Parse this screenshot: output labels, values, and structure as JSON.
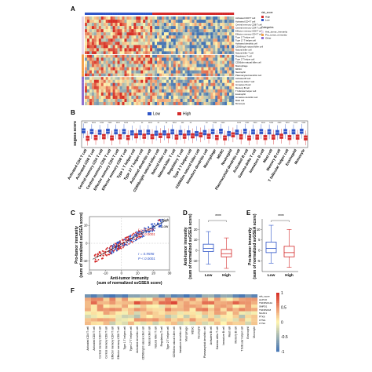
{
  "panels": {
    "A": "A",
    "B": "B",
    "C": "C",
    "D": "D",
    "E": "E",
    "F": "F"
  },
  "colors": {
    "low": "#2f55c8",
    "high": "#d42a2a",
    "anti_tumor": "#ead9ec",
    "pro_tumor": "#f3a24e",
    "other": "#8f6fd0",
    "heat_hi": "#d73027",
    "heat_mid": "#fff5b0",
    "heat_lo": "#4575b4"
  },
  "legend_A": {
    "risk_title": "risk_score",
    "risk_items": [
      "High",
      "Low"
    ],
    "cat_title": "Categories",
    "cat_items": [
      "Anti_tumor_immunity",
      "Pro_tumor_immunity",
      "Other"
    ]
  },
  "cells_A": [
    "Activated CD8 T cell",
    "Activated CD4 T cell",
    "Central memory CD8 T cell",
    "Central memory CD4 T cell",
    "Effector memory CD8 T cell",
    "Effector memory CD4 T cell",
    "Type 1 T helper cell",
    "Type 17 T helper cell",
    "Activated dendritic cell",
    "CD56bright natural killer cell",
    "Natural killer cell",
    "Natural killer T cell",
    "Regulatory T cell",
    "Type 2 T helper cell",
    "CD56dim natural killer cell",
    "Macrophage",
    "MDSC",
    "Neutrophil",
    "Plasmacytoid dendritic cell",
    "Activated B cell",
    "Gamma delta T cell",
    "Immature B cell",
    "Memory B cell",
    "T follicular helper cell",
    "Eosinophil",
    "Immature dendritic cell",
    "Mast cell",
    "Monocyte"
  ],
  "chart_data": [
    {
      "panel": "B",
      "type": "box",
      "ylabel": "ssgsea score",
      "legend": [
        "Low",
        "High"
      ],
      "categories": [
        "Activated CD4 T cell",
        "Activated CD8 T cell",
        "Central memory CD4 T cell",
        "Central memory CD8 T cell",
        "Effector memory CD4 T cell",
        "Effector memory CD8 T cell",
        "Type 1 T helper cell",
        "Type 17 T helper cell",
        "Activated dendritic cell",
        "CD56bright natural killer cell",
        "Natural killer cell",
        "Natural killer T cell",
        "Regulatory T cell",
        "Type 2 T helper cell",
        "CD56dim natural killer cell",
        "Immature dendritic cell",
        "Macrophage",
        "MDSC",
        "Neutrophil",
        "Plasmacytoid dendritic cell",
        "Activated B cell",
        "Gamma delta T cell",
        "Immature B cell",
        "Mast cell",
        "Memory B cell",
        "T follicular helper cell",
        "Eosinophil",
        "Monocyte"
      ],
      "significance": [
        "****",
        "****",
        "****",
        "****",
        "****",
        "****",
        "*",
        "**",
        "****",
        "**",
        "**",
        "****",
        "***",
        "**",
        "",
        "**",
        "****",
        "****",
        "",
        "****",
        "****",
        "****",
        "****",
        "****",
        "****",
        "****",
        "****",
        "****"
      ],
      "low_median": [
        0.25,
        0.2,
        0.15,
        0.22,
        0.18,
        0.2,
        0.1,
        0.12,
        0.15,
        0.08,
        0.1,
        0.18,
        0.12,
        0.1,
        0.05,
        0.12,
        0.2,
        0.22,
        0.05,
        0.15,
        0.22,
        0.18,
        0.2,
        0.18,
        0.12,
        0.2,
        0.18,
        0.22
      ],
      "high_median": [
        -0.3,
        -0.25,
        -0.18,
        -0.28,
        -0.2,
        -0.25,
        -0.12,
        -0.15,
        -0.18,
        -0.1,
        -0.12,
        -0.22,
        -0.15,
        -0.12,
        -0.05,
        -0.15,
        -0.25,
        -0.28,
        -0.05,
        -0.2,
        -0.28,
        -0.22,
        -0.25,
        -0.22,
        -0.15,
        -0.25,
        -0.22,
        -0.28
      ],
      "ylim": [
        -1,
        1
      ]
    },
    {
      "panel": "C",
      "type": "scatter",
      "xlabel": "Anti-tumor immunity",
      "xlabel2": "(sum of normalized ssGSEA score)",
      "ylabel": "Pro-tumor immunity",
      "ylabel2": "(sum of normalized ssGSEA score)",
      "xlim": [
        -20,
        30
      ],
      "ylim": [
        -15,
        15
      ],
      "xticks": [
        "-20",
        "-10",
        "0",
        "10",
        "20",
        "30"
      ],
      "yticks": [
        "-10",
        "0",
        "10"
      ],
      "legend": [
        "High",
        "Low"
      ],
      "stats_top_r": "r = 0.9254",
      "stats_top_p": "P < 0.0001",
      "stats_bot_r": "r = 0.9596",
      "stats_bot_p": "P < 0.0001"
    },
    {
      "panel": "D",
      "type": "box",
      "ylabel": "Anti-tumor immunity",
      "ylabel2": "(sum of normalized ssGSEA score)",
      "categories": [
        "Low",
        "High"
      ],
      "significance": "****",
      "yticks": [
        "-10",
        "0",
        "10",
        "20"
      ],
      "ylim": [
        -20,
        30
      ],
      "low": {
        "min": -13,
        "q1": -1,
        "median": 2,
        "q3": 6,
        "max": 18
      },
      "high": {
        "min": -17,
        "q1": -6,
        "median": -3,
        "q3": 1,
        "max": 12
      }
    },
    {
      "panel": "E",
      "type": "box",
      "ylabel": "Pro-tumor immunity",
      "ylabel2": "(sum of normalized ssGSEA score)",
      "categories": [
        "Low",
        "High"
      ],
      "significance": "****",
      "yticks": [
        "-5",
        "0",
        "5",
        "10"
      ],
      "ylim": [
        -10,
        15
      ],
      "low": {
        "min": -6,
        "q1": -1,
        "median": 1,
        "q3": 4,
        "max": 12
      },
      "high": {
        "min": -8,
        "q1": -3,
        "median": -1,
        "q3": 2,
        "max": 10
      }
    },
    {
      "panel": "F",
      "type": "heatmap",
      "colorbar_ticks": [
        "1",
        "0.5",
        "0",
        "-0.5",
        "-1"
      ],
      "row_labels": [
        "risk_score",
        "ALPCO",
        "TNFRSF12A",
        "SMPD1",
        "TNFRSF18",
        "NUAK1",
        "PTK6",
        "CTSG",
        "CYSA"
      ],
      "col_labels": [
        "Activated CD4 T cell",
        "Activated CD8 T cell",
        "Central memory CD4 T cell",
        "Central memory CD8 T cell",
        "Effector memory CD4 T cell",
        "Effector memory CD8 T cell",
        "Type 1 T helper cell",
        "Type 17 T helper cell",
        "Activated dendritic cell",
        "CD56bright natural killer cell",
        "Natural killer cell",
        "Natural killer T cell",
        "Regulatory T cell",
        "Type 2 T helper cell",
        "CD56dim natural killer cell",
        "Immature dendritic cell",
        "Macrophage",
        "MDSC",
        "Neutrophil",
        "Plasmacytoid dendritic cell",
        "Activated B cell",
        "Gamma delta T cell",
        "Immature B cell",
        "Mast cell",
        "Memory B cell",
        "T follicular helper cell",
        "Eosinophil",
        "Monocyte"
      ]
    }
  ]
}
